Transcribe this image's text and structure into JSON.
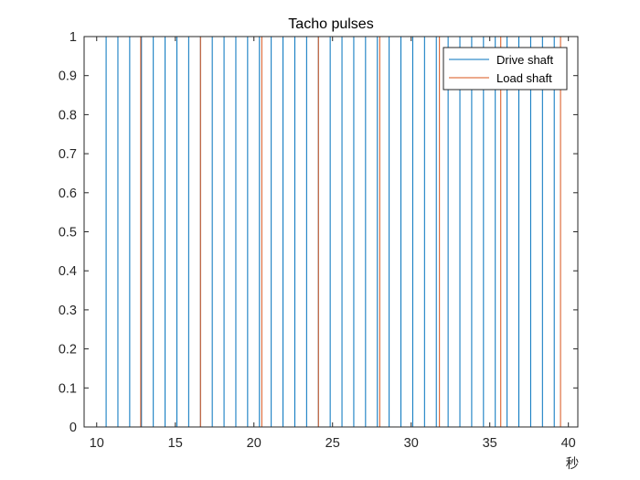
{
  "chart_data": {
    "type": "line",
    "title": "Tacho pulses",
    "xlabel": "秒",
    "ylabel": "",
    "xlim": [
      9.2,
      40.6
    ],
    "ylim": [
      0,
      1
    ],
    "x_ticks": [
      10,
      15,
      20,
      25,
      30,
      35,
      40
    ],
    "y_ticks": [
      0,
      0.1,
      0.2,
      0.3,
      0.4,
      0.5,
      0.6,
      0.7,
      0.8,
      0.9,
      1
    ],
    "x_tick_labels": [
      "10",
      "15",
      "20",
      "25",
      "30",
      "35",
      "40"
    ],
    "y_tick_labels": [
      "0",
      "0.1",
      "0.2",
      "0.3",
      "0.4",
      "0.5",
      "0.6",
      "0.7",
      "0.8",
      "0.9",
      "1"
    ],
    "grid": false,
    "legend_position": "top-right",
    "series": [
      {
        "name": "Drive shaft",
        "color": "#0072BD",
        "pulse_times": [
          10.6,
          11.35,
          12.1,
          12.85,
          13.6,
          14.35,
          15.1,
          15.85,
          16.6,
          17.35,
          18.1,
          18.85,
          19.6,
          20.35,
          21.1,
          21.85,
          22.6,
          23.35,
          24.1,
          24.85,
          25.6,
          26.35,
          27.1,
          27.85,
          28.6,
          29.35,
          30.1,
          30.85,
          31.6,
          32.35,
          33.1,
          33.85,
          34.6,
          35.35,
          36.1,
          36.85,
          37.6,
          38.35,
          39.1
        ]
      },
      {
        "name": "Load shaft",
        "color": "#D95319",
        "pulse_times": [
          12.8,
          16.6,
          20.5,
          24.1,
          28.0,
          31.8,
          35.7,
          39.5
        ]
      }
    ]
  }
}
